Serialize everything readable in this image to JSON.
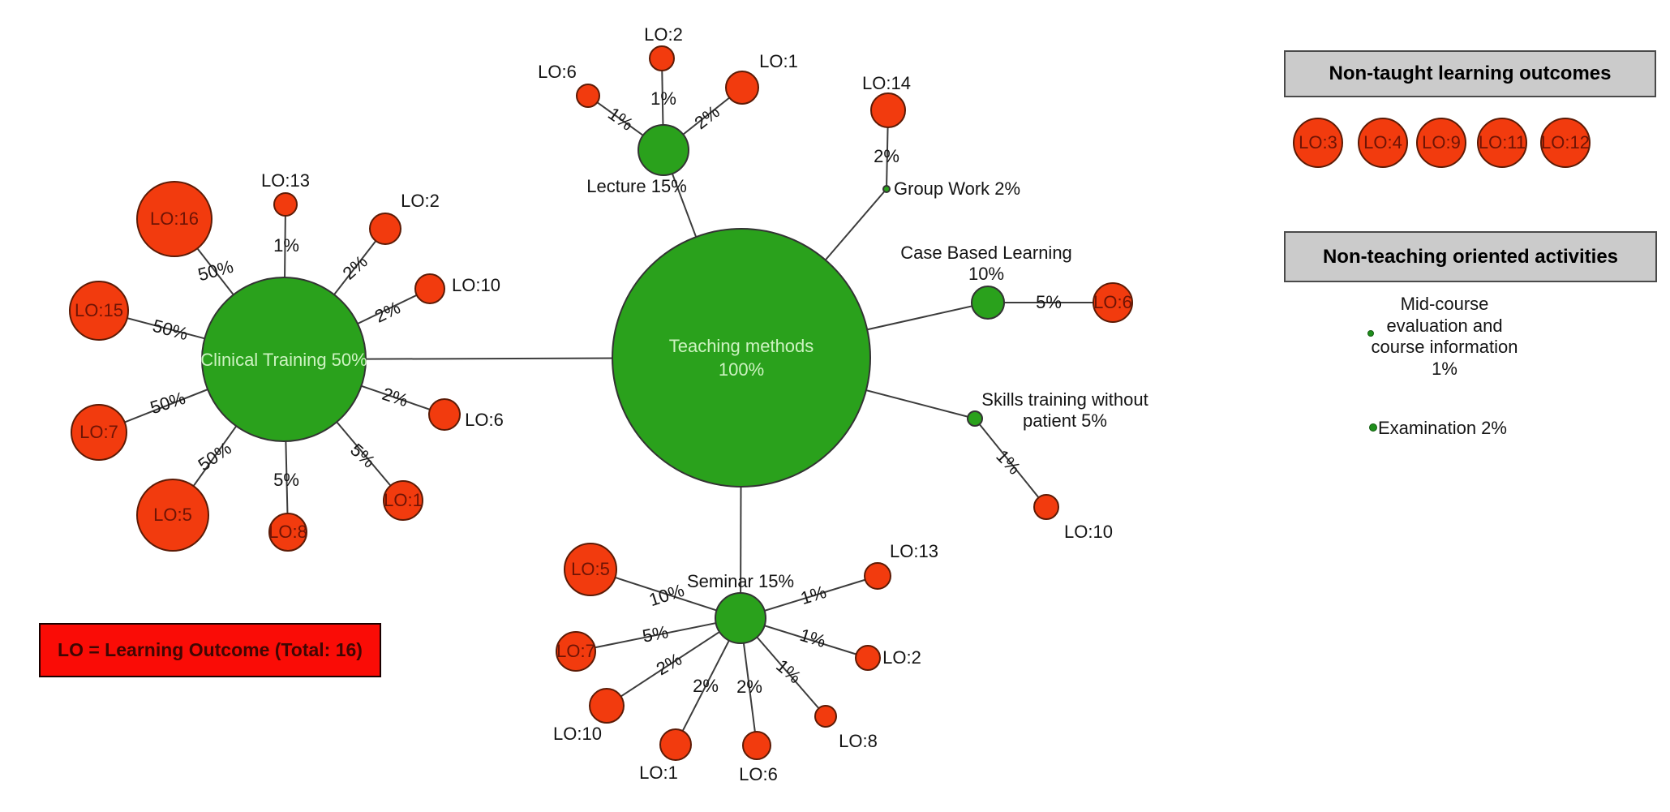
{
  "diagram": {
    "root": {
      "lines": [
        "Teaching methods",
        "100%"
      ]
    },
    "methods": [
      {
        "name": "Clinical Training",
        "label": "Clinical Training 50%",
        "outcomes": [
          {
            "label": "LO:16",
            "pct": "50%"
          },
          {
            "label": "LO:13",
            "pct": "1%"
          },
          {
            "label": "LO:2",
            "pct": "2%"
          },
          {
            "label": "LO:10",
            "pct": "2%"
          },
          {
            "label": "LO:15",
            "pct": "50%"
          },
          {
            "label": "LO:7",
            "pct": "50%"
          },
          {
            "label": "LO:6",
            "pct": "2%"
          },
          {
            "label": "LO:5",
            "pct": "50%"
          },
          {
            "label": "LO:8",
            "pct": "5%"
          },
          {
            "label": "LO:1",
            "pct": "5%"
          }
        ]
      },
      {
        "name": "Lecture",
        "label": "Lecture 15%",
        "outcomes": [
          {
            "label": "LO:6",
            "pct": "1%"
          },
          {
            "label": "LO:2",
            "pct": "1%"
          },
          {
            "label": "LO:1",
            "pct": "2%"
          }
        ]
      },
      {
        "name": "Group Work",
        "label": "Group Work 2%",
        "outcomes": [
          {
            "label": "LO:14",
            "pct": "2%"
          }
        ]
      },
      {
        "name": "Case Based Learning",
        "label_lines": [
          "Case Based Learning",
          "10%"
        ],
        "outcomes": [
          {
            "label": "LO:6",
            "pct": "5%"
          }
        ]
      },
      {
        "name": "Skills training without patient",
        "label_lines": [
          "Skills training without",
          "patient 5%"
        ],
        "outcomes": [
          {
            "label": "LO:10",
            "pct": "1%"
          }
        ]
      },
      {
        "name": "Seminar",
        "label": "Seminar 15%",
        "outcomes": [
          {
            "label": "LO:5",
            "pct": "10%"
          },
          {
            "label": "LO:7",
            "pct": "5%"
          },
          {
            "label": "LO:10",
            "pct": "2%"
          },
          {
            "label": "LO:1",
            "pct": "2%"
          },
          {
            "label": "LO:6",
            "pct": "2%"
          },
          {
            "label": "LO:8",
            "pct": "1%"
          },
          {
            "label": "LO:2",
            "pct": "1%"
          },
          {
            "label": "LO:13",
            "pct": "1%"
          }
        ]
      }
    ],
    "non_taught": {
      "title": "Non-taught learning outcomes",
      "items": [
        "LO:3",
        "LO:4",
        "LO:9",
        "LO:11",
        "LO:12"
      ]
    },
    "non_teaching": {
      "title": "Non-teaching oriented activities",
      "mid_course_lines": [
        "Mid-course",
        "evaluation and",
        "course information",
        "1%"
      ],
      "examination": "Examination 2%"
    },
    "note": "LO = Learning Outcome (Total: 16)",
    "colors": {
      "method_green": "#2AA11C",
      "outcome_red": "#F23B0E",
      "note_red": "#FA0C06",
      "legend_grey": "#CBCBCB",
      "pale_text": "#CDF3C1",
      "dark_red_text": "#6E1405"
    }
  }
}
